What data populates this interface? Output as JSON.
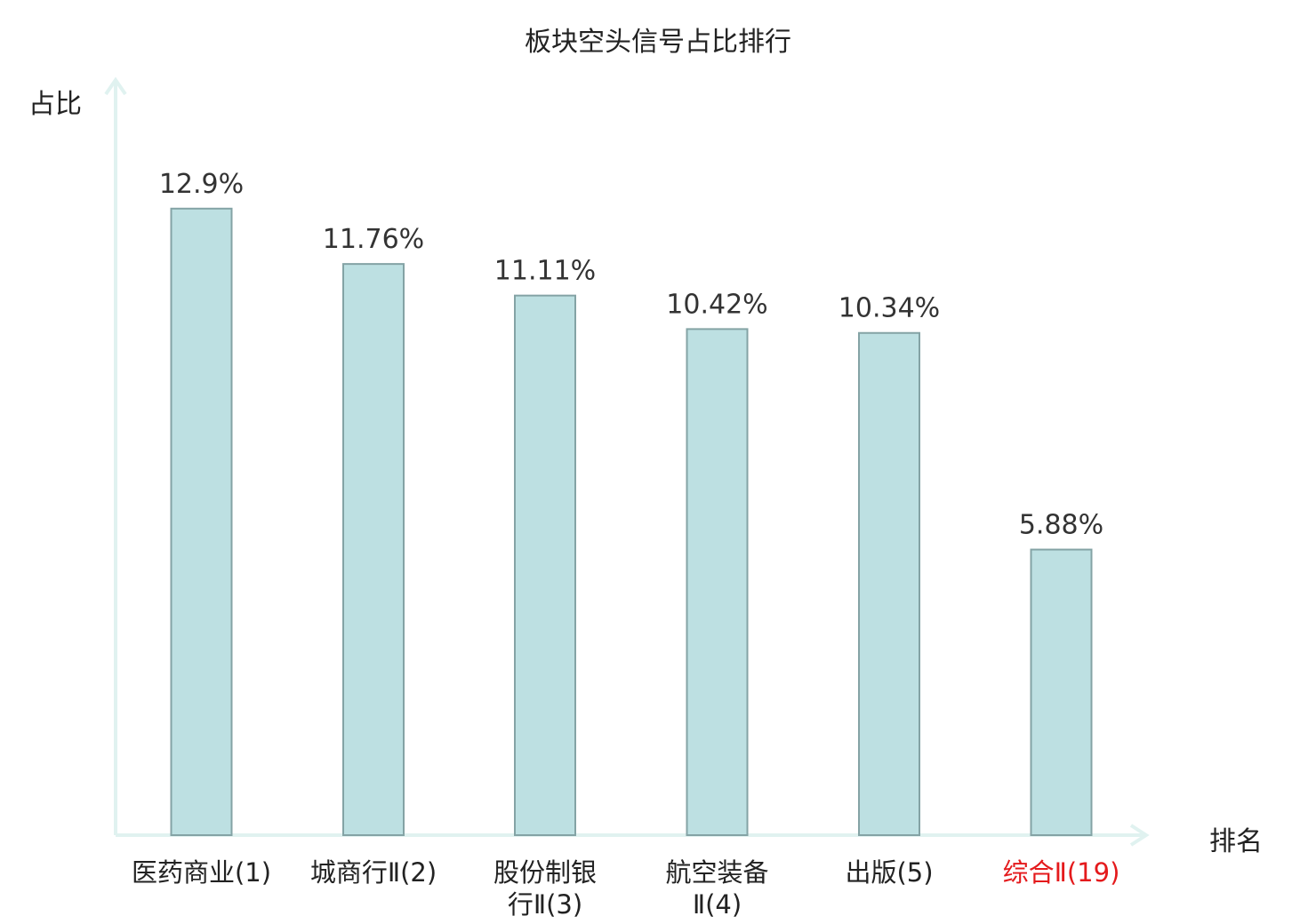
{
  "chart_data": {
    "type": "bar",
    "title": "板块空头信号占比排行",
    "ylabel": "占比",
    "xlabel": "排名",
    "categories": [
      {
        "lines": [
          "医药商业(1)"
        ]
      },
      {
        "lines": [
          "城商行Ⅱ(2)"
        ]
      },
      {
        "lines": [
          "股份制银",
          "行Ⅱ(3)"
        ]
      },
      {
        "lines": [
          "航空装备",
          "Ⅱ(4)"
        ]
      },
      {
        "lines": [
          "出版(5)"
        ]
      },
      {
        "lines": [
          "综合Ⅱ(19)"
        ]
      }
    ],
    "values": [
      12.9,
      11.76,
      11.11,
      10.42,
      10.34,
      5.88
    ],
    "value_labels": [
      "12.9%",
      "11.76%",
      "11.11%",
      "10.42%",
      "10.34%",
      "5.88%"
    ],
    "highlight_index": 5,
    "ylim": [
      0,
      15
    ],
    "grid": false,
    "colors": {
      "bar_fill": "#bde0e2",
      "bar_stroke": "#84a3a5",
      "axis": "#e0f2f0",
      "highlight_text": "#e41a1c",
      "text": "#222222"
    }
  }
}
